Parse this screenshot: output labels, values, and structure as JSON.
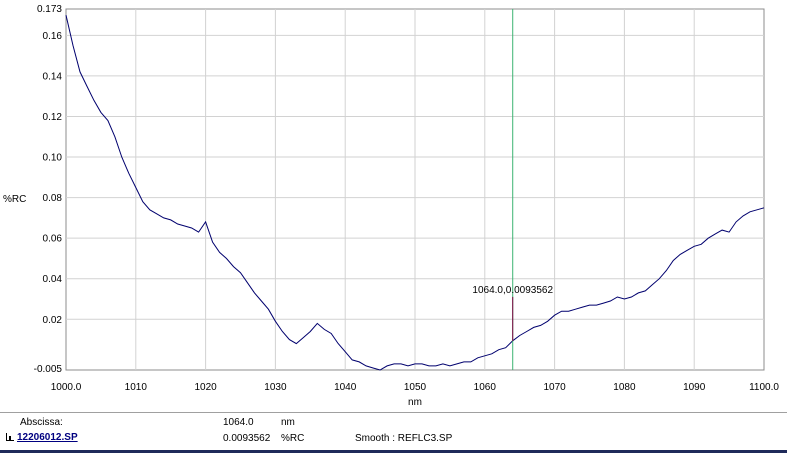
{
  "chart_data": {
    "type": "line",
    "xlabel": "nm",
    "ylabel": "%RC",
    "xlim": [
      1000.0,
      1100.0
    ],
    "ylim": [
      -0.005,
      0.173
    ],
    "x_ticks": [
      "1000.0",
      "1010",
      "1020",
      "1030",
      "1040",
      "1050",
      "1060",
      "1070",
      "1080",
      "1090",
      "1100.0"
    ],
    "y_ticks": [
      "0.173",
      "0.16",
      "0.14",
      "0.12",
      "0.10",
      "0.08",
      "0.06",
      "0.04",
      "0.02",
      "-0.005"
    ],
    "grid": true,
    "line_color": "#00006e",
    "series": [
      {
        "x": [
          1000,
          1001,
          1002,
          1003,
          1004,
          1005,
          1006,
          1007,
          1008,
          1009,
          1010,
          1011,
          1012,
          1013,
          1014,
          1015,
          1016,
          1017,
          1018,
          1019,
          1020,
          1021,
          1022,
          1023,
          1024,
          1025,
          1026,
          1027,
          1028,
          1029,
          1030,
          1031,
          1032,
          1033,
          1034,
          1035,
          1036,
          1037,
          1038,
          1039,
          1040,
          1041,
          1042,
          1043,
          1044,
          1045,
          1046,
          1047,
          1048,
          1049,
          1050,
          1051,
          1052,
          1053,
          1054,
          1055,
          1056,
          1057,
          1058,
          1059,
          1060,
          1061,
          1062,
          1063,
          1064,
          1065,
          1066,
          1067,
          1068,
          1069,
          1070,
          1071,
          1072,
          1073,
          1074,
          1075,
          1076,
          1077,
          1078,
          1079,
          1080,
          1081,
          1082,
          1083,
          1084,
          1085,
          1086,
          1087,
          1088,
          1089,
          1090,
          1091,
          1092,
          1093,
          1094,
          1095,
          1096,
          1097,
          1098,
          1099,
          1100
        ],
        "y": [
          0.17,
          0.155,
          0.142,
          0.135,
          0.128,
          0.122,
          0.118,
          0.11,
          0.1,
          0.092,
          0.085,
          0.078,
          0.074,
          0.072,
          0.07,
          0.069,
          0.067,
          0.066,
          0.065,
          0.063,
          0.068,
          0.058,
          0.053,
          0.05,
          0.046,
          0.043,
          0.038,
          0.033,
          0.029,
          0.025,
          0.019,
          0.014,
          0.01,
          0.008,
          0.011,
          0.014,
          0.018,
          0.015,
          0.013,
          0.008,
          0.004,
          0.0,
          -0.001,
          -0.003,
          -0.004,
          -0.005,
          -0.003,
          -0.002,
          -0.002,
          -0.003,
          -0.002,
          -0.002,
          -0.003,
          -0.003,
          -0.002,
          -0.003,
          -0.002,
          -0.001,
          -0.001,
          0.001,
          0.002,
          0.003,
          0.005,
          0.006,
          0.0094,
          0.012,
          0.014,
          0.016,
          0.017,
          0.019,
          0.022,
          0.024,
          0.024,
          0.025,
          0.026,
          0.027,
          0.027,
          0.028,
          0.029,
          0.031,
          0.03,
          0.031,
          0.033,
          0.034,
          0.037,
          0.04,
          0.044,
          0.049,
          0.052,
          0.054,
          0.056,
          0.057,
          0.06,
          0.062,
          0.064,
          0.063,
          0.068,
          0.071,
          0.073,
          0.074,
          0.075
        ]
      }
    ],
    "cursor": {
      "x": 1064.0,
      "y": 0.0093562,
      "label": "1064.0,0.0093562",
      "color": "#3cb371"
    }
  },
  "status": {
    "abscissa_label": "Abscissa:",
    "abscissa_value": "1064.0",
    "abscissa_unit": "nm",
    "file_name": "12206012.SP",
    "ordinate_value": "0.0093562",
    "ordinate_unit": "%RC",
    "smooth_text": "Smooth : REFLC3.SP"
  }
}
